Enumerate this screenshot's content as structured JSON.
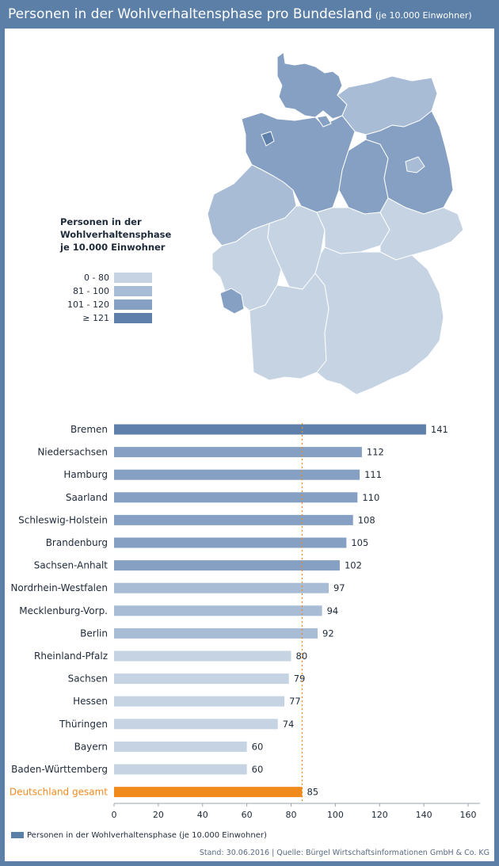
{
  "header": {
    "title": "Personen in der Wohlverhaltensphase pro Bundesland",
    "subtitle": "(je 10.000 Einwohner)"
  },
  "map_legend": {
    "title_lines": [
      "Personen in der",
      "Wohlverhaltensphase",
      "je 10.000 Einwohner"
    ],
    "items": [
      {
        "label": "0 -  80",
        "color": "#c5d3e3"
      },
      {
        "label": "81 - 100",
        "color": "#a8bcd5"
      },
      {
        "label": "101 - 120",
        "color": "#86a0c3"
      },
      {
        "label": "≥  121",
        "color": "#5f80ab"
      }
    ]
  },
  "chart_data": {
    "type": "bar",
    "orientation": "horizontal",
    "categories": [
      "Bremen",
      "Niedersachsen",
      "Hamburg",
      "Saarland",
      "Schleswig-Holstein",
      "Brandenburg",
      "Sachsen-Anhalt",
      "Nordrhein-Westfalen",
      "Mecklenburg-Vorp.",
      "Berlin",
      "Rheinland-Pfalz",
      "Sachsen",
      "Hessen",
      "Thüringen",
      "Bayern",
      "Baden-Württemberg",
      "Deutschland gesamt"
    ],
    "series": [
      {
        "name": "Personen in der Wohlverhaltensphase (je 10.000 Einwohner)",
        "values": [
          141,
          112,
          111,
          110,
          108,
          105,
          102,
          97,
          94,
          92,
          80,
          79,
          77,
          74,
          60,
          60,
          85
        ]
      }
    ],
    "xlim": [
      0,
      160
    ],
    "xticks": [
      "0",
      "20",
      "40",
      "60",
      "80",
      "100",
      "120",
      "140",
      "160"
    ],
    "reference_line": {
      "value": 85,
      "style": "dotted",
      "color": "#f08a1d"
    },
    "highlight": {
      "category": "Deutschland gesamt",
      "color": "#f08a1d"
    },
    "bar_colors_by_band": {
      "0-80": "#c5d3e3",
      "81-100": "#a8bcd5",
      "101-120": "#86a0c3",
      "121+": "#5f80ab"
    },
    "legend": "bottom-left"
  },
  "footer": {
    "source": "Stand: 30.06.2016 | Quelle: Bürgel Wirtschaftsinformationen GmbH & Co. KG"
  }
}
